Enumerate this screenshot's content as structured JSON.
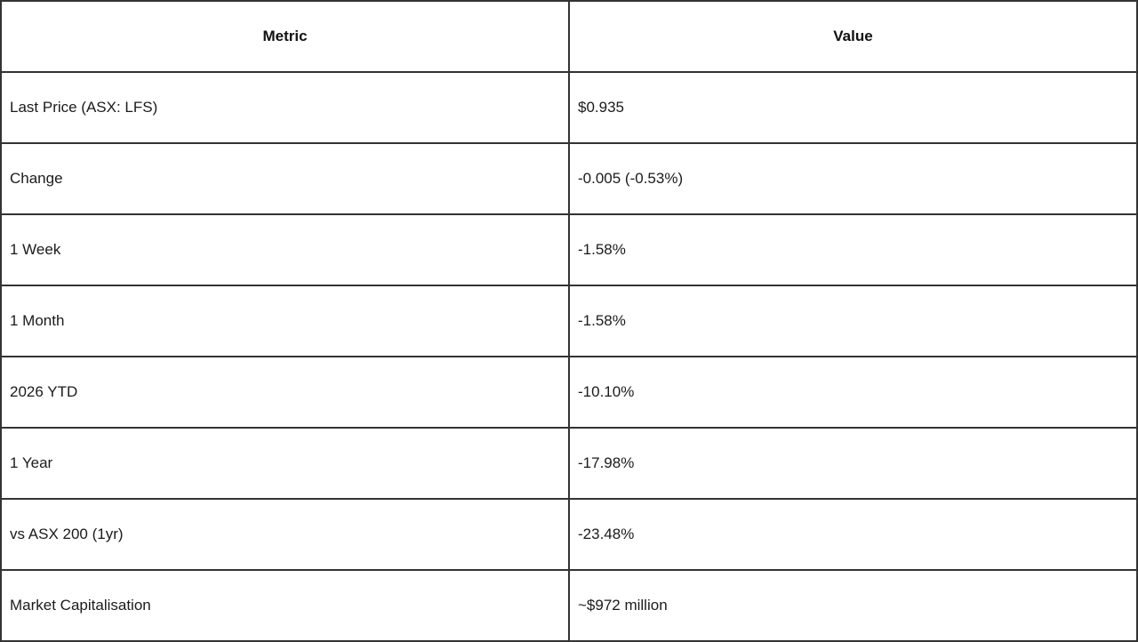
{
  "table": {
    "headers": [
      {
        "label": "Metric"
      },
      {
        "label": "Value"
      }
    ],
    "rows": [
      {
        "metric": "Last Price (ASX: LFS)",
        "value": "$0.935"
      },
      {
        "metric": "Change",
        "value": "-0.005 (-0.53%)"
      },
      {
        "metric": "1 Week",
        "value": "-1.58%"
      },
      {
        "metric": "1 Month",
        "value": "-1.58%"
      },
      {
        "metric": "2026 YTD",
        "value": "-10.10%"
      },
      {
        "metric": "1 Year",
        "value": "-17.98%"
      },
      {
        "metric": "vs ASX 200 (1yr)",
        "value": "-23.48%"
      },
      {
        "metric": "Market Capitalisation",
        "value": "~$972 million"
      }
    ],
    "colors": {
      "border": "#333333",
      "header_text": "#111111",
      "body_text": "#1b1b1b",
      "background": "#ffffff"
    }
  }
}
